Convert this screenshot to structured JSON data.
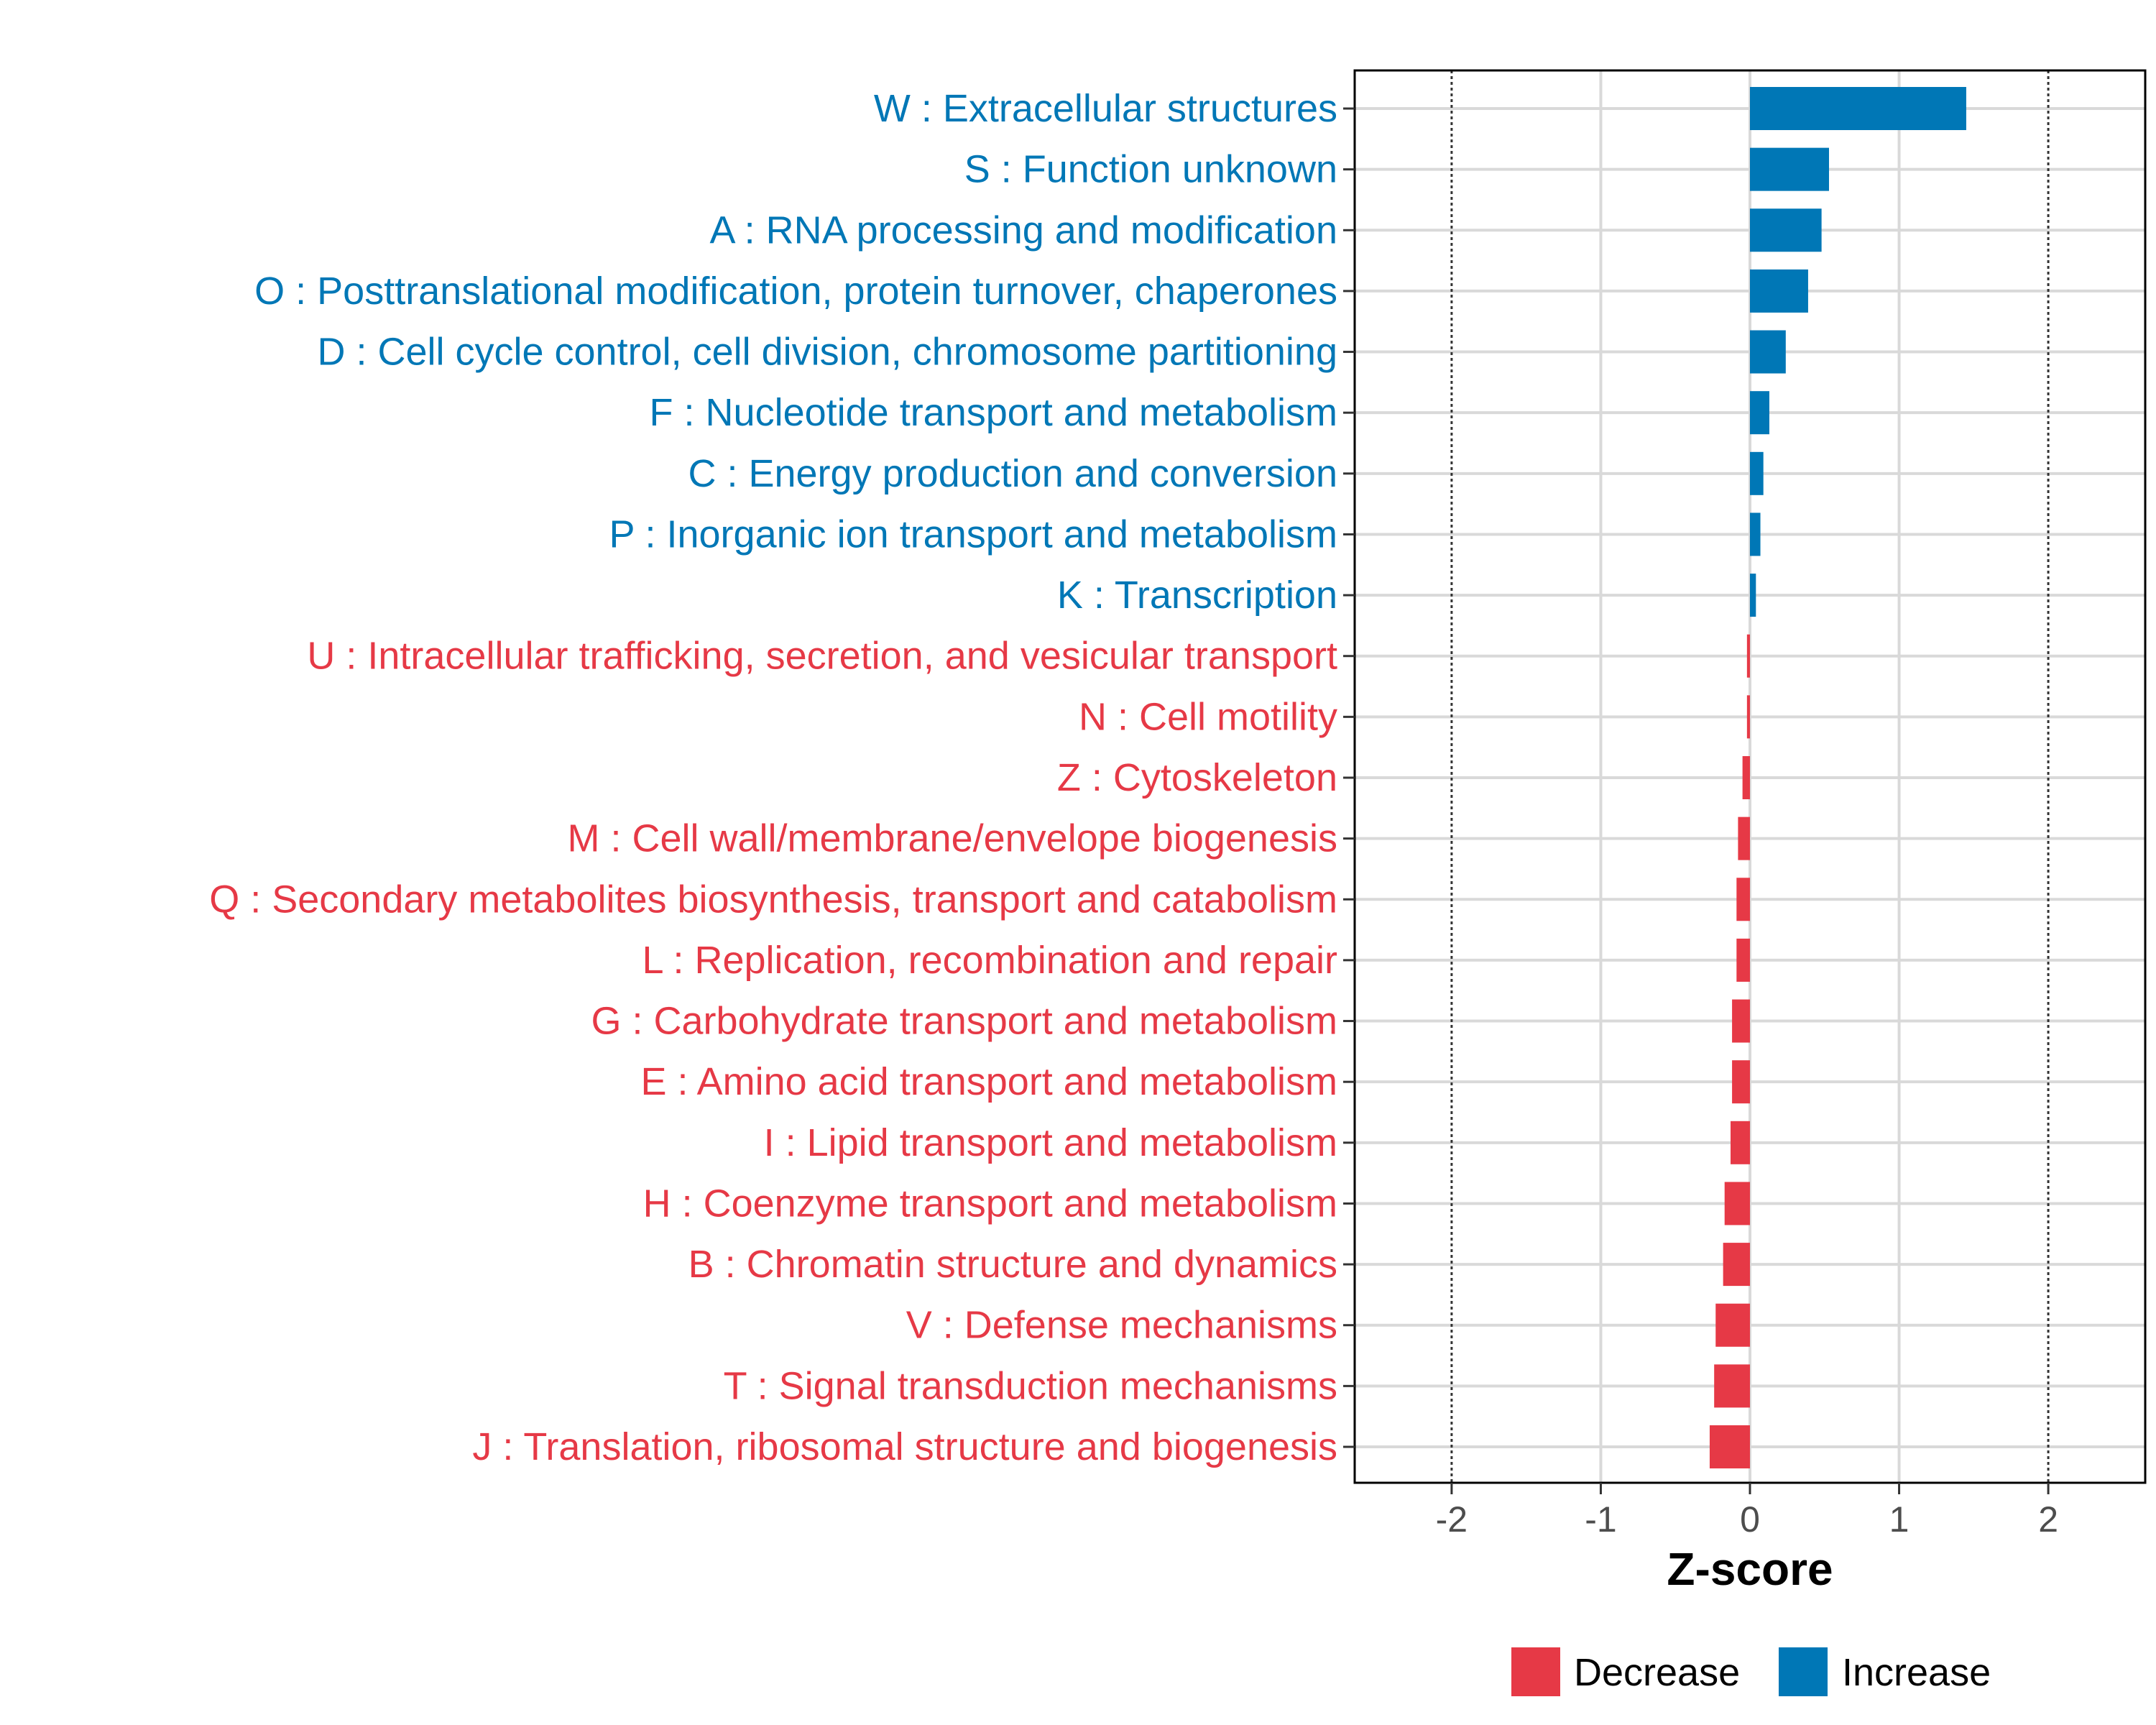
{
  "chart_data": {
    "type": "bar",
    "orientation": "horizontal",
    "xlabel": "Z-score",
    "xlim": [
      -2.65,
      2.65
    ],
    "xticks": [
      -2,
      -1,
      0,
      1,
      2
    ],
    "xtick_labels": [
      "-2",
      "-1",
      "0",
      "1",
      "2"
    ],
    "reference_lines": [
      -2,
      2
    ],
    "colors": {
      "Decrease": "#e63946",
      "Increase": "#0077b6"
    },
    "legend": {
      "position": "bottom",
      "entries": [
        {
          "name": "Decrease",
          "color": "#e63946"
        },
        {
          "name": "Increase",
          "color": "#0077b6"
        }
      ]
    },
    "categories": [
      "W : Extracellular structures",
      "S : Function unknown",
      "A : RNA processing and modification",
      "O : Posttranslational modification, protein turnover, chaperones",
      "D : Cell cycle control, cell division, chromosome partitioning",
      "F : Nucleotide transport and metabolism",
      "C : Energy production and conversion",
      "P : Inorganic ion transport and metabolism",
      "K : Transcription",
      "U : Intracellular trafficking, secretion, and vesicular transport",
      "N : Cell motility",
      "Z : Cytoskeleton",
      "M : Cell wall/membrane/envelope biogenesis",
      "Q : Secondary metabolites biosynthesis, transport and catabolism",
      "L : Replication, recombination and repair",
      "G : Carbohydrate transport and metabolism",
      "E : Amino acid transport and metabolism",
      "I : Lipid transport and metabolism",
      "H : Coenzyme transport and metabolism",
      "B : Chromatin structure and dynamics",
      "V : Defense mechanisms",
      "T : Signal transduction mechanisms",
      "J : Translation, ribosomal structure and biogenesis"
    ],
    "values": [
      1.45,
      0.53,
      0.48,
      0.39,
      0.24,
      0.13,
      0.09,
      0.07,
      0.04,
      -0.02,
      -0.02,
      -0.05,
      -0.08,
      -0.09,
      -0.09,
      -0.12,
      -0.12,
      -0.13,
      -0.17,
      -0.18,
      -0.23,
      -0.24,
      -0.27
    ],
    "groups": [
      "Increase",
      "Increase",
      "Increase",
      "Increase",
      "Increase",
      "Increase",
      "Increase",
      "Increase",
      "Increase",
      "Decrease",
      "Decrease",
      "Decrease",
      "Decrease",
      "Decrease",
      "Decrease",
      "Decrease",
      "Decrease",
      "Decrease",
      "Decrease",
      "Decrease",
      "Decrease",
      "Decrease",
      "Decrease"
    ]
  }
}
